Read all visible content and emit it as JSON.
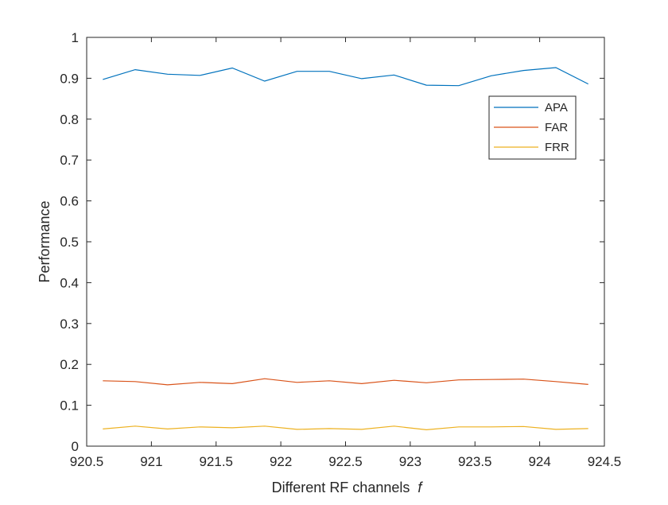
{
  "chart_data": {
    "type": "line",
    "xlabel": "Different RF channels",
    "xlabel_symbol": "f",
    "ylabel": "Performance",
    "xlim": [
      920.5,
      924.5
    ],
    "ylim": [
      0,
      1
    ],
    "x_ticks": [
      "920.5",
      "921",
      "921.5",
      "922",
      "922.5",
      "923",
      "923.5",
      "924",
      "924.5"
    ],
    "y_ticks": [
      "0",
      "0.1",
      "0.2",
      "0.3",
      "0.4",
      "0.5",
      "0.6",
      "0.7",
      "0.8",
      "0.9",
      "1"
    ],
    "x": [
      920.625,
      920.875,
      921.125,
      921.375,
      921.625,
      921.875,
      922.125,
      922.375,
      922.625,
      922.875,
      923.125,
      923.375,
      923.625,
      923.875,
      924.125,
      924.375
    ],
    "series": [
      {
        "name": "APA",
        "color": "#0072BD",
        "values": [
          0.897,
          0.921,
          0.91,
          0.907,
          0.925,
          0.893,
          0.917,
          0.917,
          0.899,
          0.908,
          0.883,
          0.882,
          0.906,
          0.919,
          0.926,
          0.886
        ]
      },
      {
        "name": "FAR",
        "color": "#D95319",
        "values": [
          0.16,
          0.158,
          0.15,
          0.156,
          0.153,
          0.165,
          0.156,
          0.16,
          0.153,
          0.161,
          0.155,
          0.162,
          0.163,
          0.164,
          0.158,
          0.151
        ]
      },
      {
        "name": "FRR",
        "color": "#EDB120",
        "values": [
          0.042,
          0.049,
          0.042,
          0.047,
          0.045,
          0.049,
          0.041,
          0.043,
          0.041,
          0.049,
          0.04,
          0.047,
          0.047,
          0.048,
          0.041,
          0.043
        ]
      }
    ],
    "grid": false,
    "legend_position": "top-right"
  }
}
